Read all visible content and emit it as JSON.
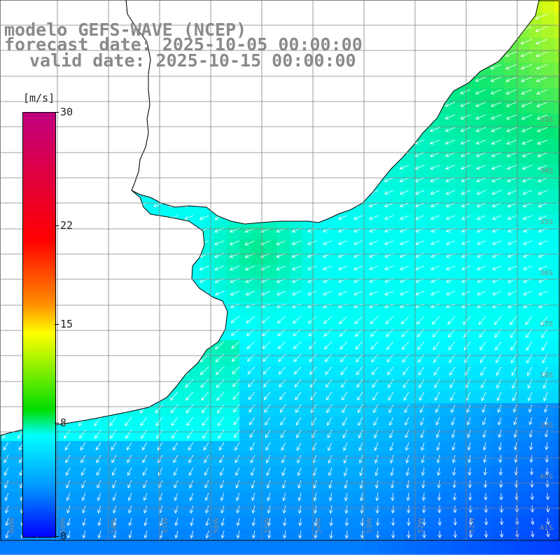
{
  "title": {
    "line1": "modelo GEFS-WAVE (NCEP)",
    "line2": "forecast date: 2025-10-05 00:00:00",
    "line3": "valid date: 2025-10-15 00:00:00"
  },
  "colorbar": {
    "unit": "[m/s]",
    "min": 0,
    "max": 30,
    "ticks": [
      "30",
      "22",
      "15",
      "8",
      "0"
    ],
    "tick_values": [
      30,
      22,
      15,
      8,
      0
    ],
    "colors": [
      "#0000ff",
      "#0099ff",
      "#00ffff",
      "#00dd00",
      "#ffff00",
      "#ff8c00",
      "#ff0000",
      "#c0007f"
    ]
  },
  "map": {
    "lat_range": [
      -41.3,
      -31.0
    ],
    "lon_range": [
      -60.0,
      -50.0
    ],
    "lat_labels": [
      "33S",
      "34S",
      "35S",
      "36S",
      "37S",
      "38S",
      "39S",
      "40S",
      "41S"
    ],
    "lon_labels": [
      "60W",
      "59W",
      "58W",
      "57W",
      "56W",
      "55W",
      "54W",
      "53W",
      "52W",
      "51W"
    ],
    "land_color": "#ffffff",
    "grid_color": "#808080",
    "arrow_color": "#ffffff"
  }
}
